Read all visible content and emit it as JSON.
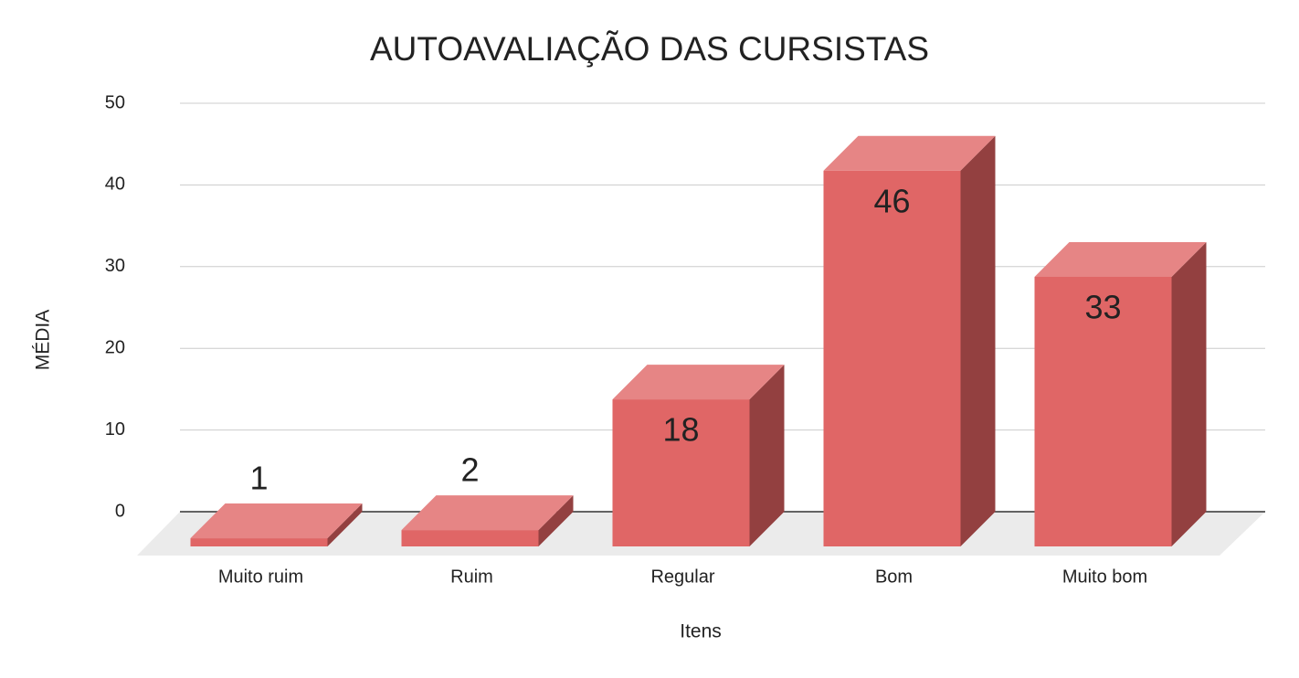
{
  "chart_data": {
    "type": "bar3d",
    "title": "AUTOAVALIAÇÃO DAS CURSISTAS",
    "x_label": "Itens",
    "y_label": "MÉDIA",
    "categories": [
      "Muito ruim",
      "Ruim",
      "Regular",
      "Bom",
      "Muito bom"
    ],
    "values": [
      1,
      2,
      18,
      46,
      33
    ],
    "color": "#e06666",
    "ylim": [
      0,
      50
    ],
    "yticks": [
      0,
      10,
      20,
      30,
      40,
      50
    ],
    "grid": true
  }
}
